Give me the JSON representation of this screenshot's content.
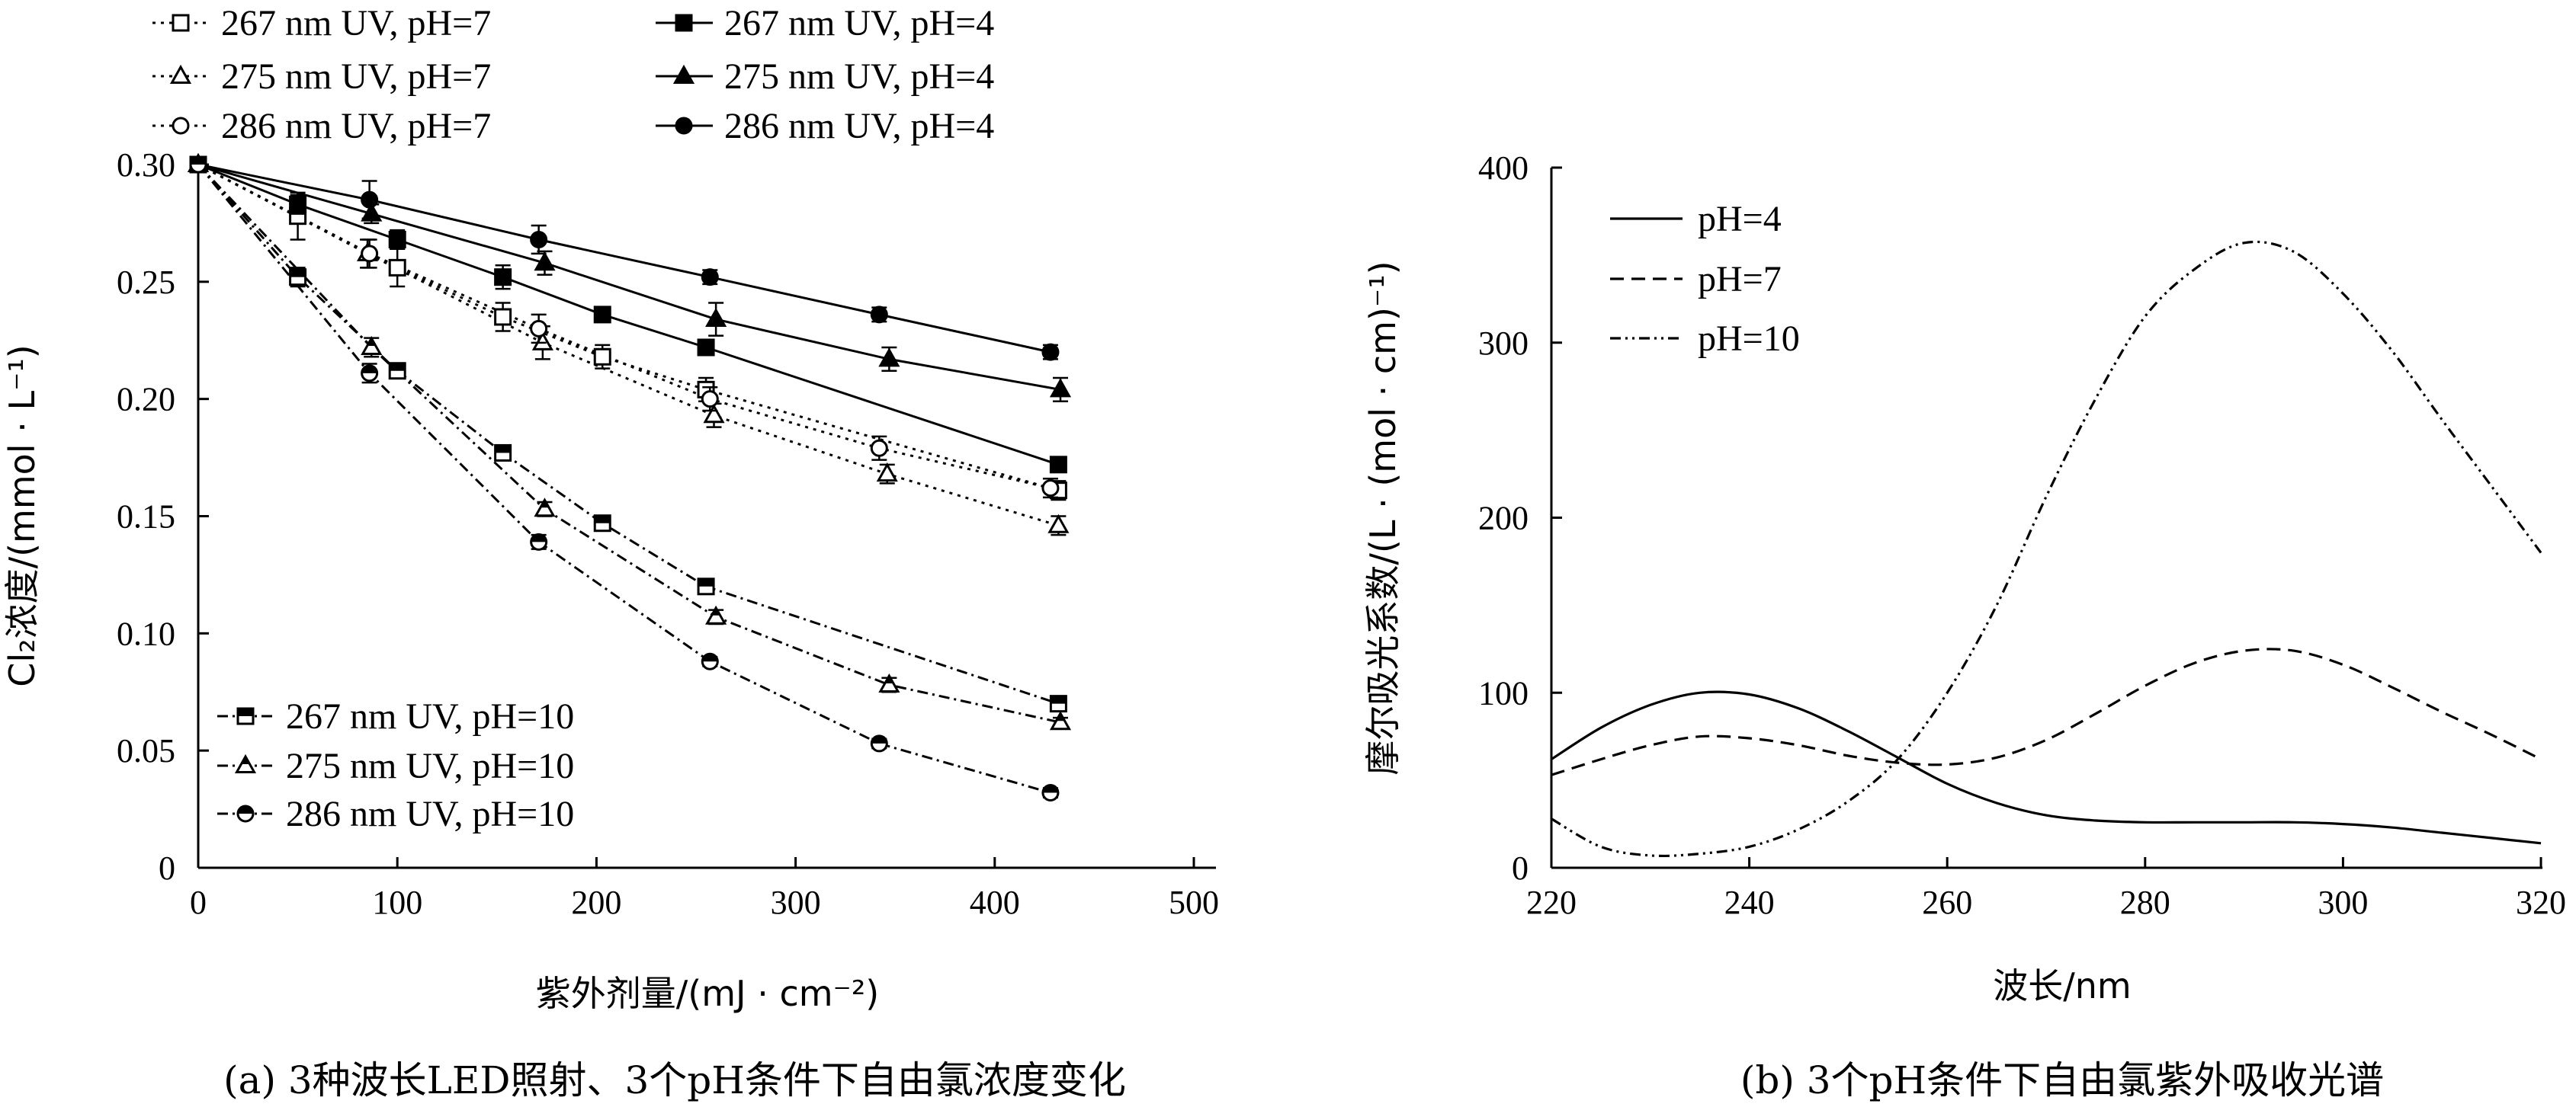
{
  "captions": {
    "a": "(a) 3种波长LED照射、3个pH条件下自由氯浓度变化",
    "b": "(b) 3个pH条件下自由氯紫外吸收光谱"
  },
  "chart_data": [
    {
      "type": "line",
      "panel": "a",
      "xlabel": "紫外剂量/(mJ · cm⁻²)",
      "ylabel": "Cl₂浓度/(mmol · L⁻¹)",
      "xlim": [
        0,
        500
      ],
      "ylim": [
        0,
        0.3
      ],
      "xticks": [
        "0",
        "100",
        "200",
        "300",
        "400",
        "500"
      ],
      "yticks": [
        "0",
        "0.05",
        "0.10",
        "0.15",
        "0.20",
        "0.25",
        "0.30"
      ],
      "legend_position": "top and bottom-left",
      "grid": false,
      "series": [
        {
          "name": "267 nm UV, pH=7",
          "marker": "square-open",
          "line": "dotted",
          "color": "#000000",
          "x": [
            0,
            50,
            100,
            153,
            203,
            255,
            432
          ],
          "y": [
            0.3,
            0.278,
            0.256,
            0.235,
            0.218,
            0.204,
            0.161
          ],
          "err": [
            0,
            0.01,
            0.008,
            0.006,
            0.005,
            0.005,
            0.004
          ]
        },
        {
          "name": "275 nm UV, pH=7",
          "marker": "triangle-open",
          "line": "dotted",
          "color": "#000000",
          "x": [
            0,
            85,
            173,
            259,
            346,
            432
          ],
          "y": [
            0.3,
            0.262,
            0.224,
            0.193,
            0.168,
            0.146
          ],
          "err": [
            0,
            0.006,
            0.007,
            0.005,
            0.004,
            0.004
          ]
        },
        {
          "name": "286 nm UV, pH=7",
          "marker": "circle-open",
          "line": "dotted",
          "color": "#000000",
          "x": [
            0,
            86,
            171,
            257,
            342,
            428
          ],
          "y": [
            0.3,
            0.262,
            0.23,
            0.2,
            0.179,
            0.162
          ],
          "err": [
            0,
            0.006,
            0.006,
            0.005,
            0.005,
            0.004
          ]
        },
        {
          "name": "267 nm UV, pH=4",
          "marker": "square-filled",
          "line": "solid",
          "color": "#000000",
          "x": [
            0,
            50,
            100,
            153,
            203,
            255,
            432
          ],
          "y": [
            0.3,
            0.283,
            0.268,
            0.252,
            0.236,
            0.222,
            0.172
          ],
          "err": [
            0,
            0.004,
            0.004,
            0.005,
            0.003,
            0.003,
            0.003
          ]
        },
        {
          "name": "275 nm UV, pH=4",
          "marker": "triangle-filled",
          "line": "solid",
          "color": "#000000",
          "x": [
            0,
            87,
            174,
            260,
            347,
            433
          ],
          "y": [
            0.3,
            0.279,
            0.258,
            0.234,
            0.217,
            0.204
          ],
          "err": [
            0,
            0.004,
            0.005,
            0.007,
            0.005,
            0.005
          ]
        },
        {
          "name": "286 nm UV, pH=4",
          "marker": "circle-filled",
          "line": "solid",
          "color": "#000000",
          "x": [
            0,
            86,
            171,
            257,
            342,
            428
          ],
          "y": [
            0.3,
            0.285,
            0.268,
            0.252,
            0.236,
            0.22
          ],
          "err": [
            0,
            0.008,
            0.006,
            0.003,
            0.003,
            0.003
          ]
        },
        {
          "name": "267 nm UV, pH=10",
          "marker": "square-half",
          "line": "dashdot",
          "color": "#000000",
          "x": [
            0,
            50,
            100,
            153,
            203,
            255,
            432
          ],
          "y": [
            0.3,
            0.252,
            0.212,
            0.177,
            0.147,
            0.12,
            0.07
          ],
          "err": [
            0,
            0.004,
            0.003,
            0.003,
            0.002,
            0.003,
            0.002
          ]
        },
        {
          "name": "275 nm UV, pH=10",
          "marker": "triangle-half",
          "line": "dashdot",
          "color": "#000000",
          "x": [
            0,
            87,
            174,
            260,
            347,
            433
          ],
          "y": [
            0.3,
            0.222,
            0.153,
            0.107,
            0.078,
            0.062
          ],
          "err": [
            0,
            0.004,
            0.003,
            0.003,
            0.003,
            0.002
          ]
        },
        {
          "name": "286 nm UV, pH=10",
          "marker": "circle-half",
          "line": "dashdot",
          "color": "#000000",
          "x": [
            0,
            86,
            171,
            257,
            342,
            428
          ],
          "y": [
            0.3,
            0.211,
            0.139,
            0.088,
            0.053,
            0.032
          ],
          "err": [
            0,
            0.004,
            0.003,
            0.002,
            0.002,
            0.002
          ]
        }
      ]
    },
    {
      "type": "line",
      "panel": "b",
      "xlabel": "波长/nm",
      "ylabel": "摩尔吸光系数/(L · (mol · cm)⁻¹)",
      "xlim": [
        220,
        320
      ],
      "ylim": [
        0,
        400
      ],
      "xticks": [
        "220",
        "240",
        "260",
        "280",
        "300",
        "320"
      ],
      "yticks": [
        "0",
        "100",
        "200",
        "300",
        "400"
      ],
      "legend_position": "top-left",
      "grid": false,
      "series": [
        {
          "name": "pH=4",
          "line": "solid",
          "color": "#000000",
          "x": [
            220,
            225,
            230,
            235,
            240,
            245,
            250,
            255,
            260,
            265,
            270,
            275,
            280,
            285,
            290,
            295,
            300,
            305,
            310,
            315,
            320
          ],
          "y": [
            62,
            80,
            93,
            100,
            99,
            91,
            78,
            63,
            48,
            37,
            30,
            27,
            26,
            26,
            26,
            26,
            25,
            23,
            20,
            17,
            14
          ]
        },
        {
          "name": "pH=7",
          "line": "dashed",
          "color": "#000000",
          "x": [
            220,
            225,
            230,
            235,
            240,
            245,
            250,
            255,
            260,
            265,
            270,
            275,
            280,
            285,
            290,
            295,
            300,
            305,
            310,
            315,
            320
          ],
          "y": [
            53,
            62,
            70,
            75,
            74,
            70,
            64,
            60,
            59,
            63,
            73,
            88,
            104,
            117,
            124,
            124,
            116,
            103,
            89,
            76,
            62
          ]
        },
        {
          "name": "pH=10",
          "line": "dashdotdot",
          "color": "#000000",
          "x": [
            220,
            225,
            230,
            235,
            240,
            245,
            250,
            255,
            260,
            265,
            270,
            275,
            280,
            285,
            290,
            295,
            300,
            305,
            310,
            315,
            320
          ],
          "y": [
            28,
            12,
            7,
            8,
            12,
            22,
            38,
            62,
            100,
            150,
            212,
            268,
            315,
            342,
            357,
            352,
            328,
            295,
            256,
            218,
            180
          ]
        }
      ]
    }
  ]
}
